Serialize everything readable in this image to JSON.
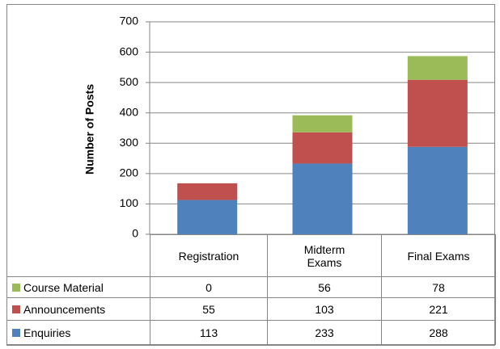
{
  "chart_data": {
    "type": "bar",
    "stacked": true,
    "y_label": "Number of Posts",
    "categories": [
      "Registration",
      "Midterm Exams",
      "Final Exams"
    ],
    "series": [
      {
        "name": "Course Material",
        "color": "#9bbb59",
        "values": [
          0,
          56,
          78
        ]
      },
      {
        "name": "Announcements",
        "color": "#c0504d",
        "values": [
          55,
          103,
          221
        ]
      },
      {
        "name": "Enquiries",
        "color": "#4f81bd",
        "values": [
          113,
          233,
          288
        ]
      }
    ],
    "ylim": [
      0,
      700
    ],
    "yticks": [
      0,
      100,
      200,
      300,
      400,
      500,
      600,
      700
    ],
    "grid": true,
    "data_table": true
  }
}
